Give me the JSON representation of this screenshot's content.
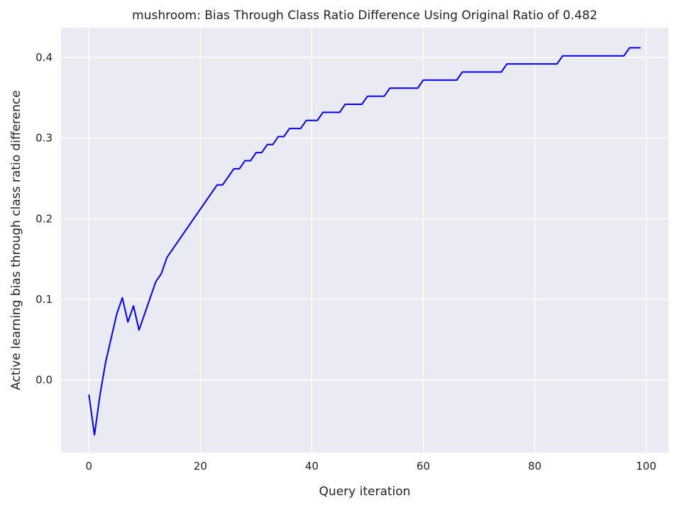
{
  "chart_data": {
    "type": "line",
    "title": "mushroom: Bias Through Class Ratio Difference Using Original Ratio of 0.482",
    "xlabel": "Query iteration",
    "ylabel": "Active learning bias through class ratio difference",
    "xlim": [
      -5,
      104
    ],
    "ylim": [
      -0.09,
      0.437
    ],
    "xticks": [
      0,
      20,
      40,
      60,
      80,
      100
    ],
    "yticks": [
      0.0,
      0.1,
      0.2,
      0.3,
      0.4
    ],
    "xtick_labels": [
      "0",
      "20",
      "40",
      "60",
      "80",
      "100"
    ],
    "ytick_labels": [
      "0.0",
      "0.1",
      "0.2",
      "0.3",
      "0.4"
    ],
    "grid": true,
    "colors": {
      "background": "#eaeaf2",
      "grid": "#ffffff",
      "line": "#0000ff"
    },
    "series": [
      {
        "color": "#0000ff",
        "x": [
          0,
          1,
          2,
          3,
          4,
          5,
          6,
          7,
          8,
          9,
          10,
          11,
          12,
          13,
          14,
          15,
          16,
          17,
          18,
          19,
          20,
          21,
          22,
          23,
          24,
          25,
          26,
          27,
          28,
          29,
          30,
          31,
          32,
          33,
          34,
          35,
          36,
          37,
          38,
          39,
          40,
          41,
          42,
          43,
          44,
          45,
          46,
          47,
          48,
          49,
          50,
          51,
          52,
          53,
          54,
          55,
          56,
          57,
          58,
          59,
          60,
          61,
          62,
          63,
          64,
          65,
          66,
          67,
          68,
          69,
          70,
          71,
          72,
          73,
          74,
          75,
          76,
          77,
          78,
          79,
          80,
          81,
          82,
          83,
          84,
          85,
          86,
          87,
          88,
          89,
          90,
          91,
          92,
          93,
          94,
          95,
          96,
          97,
          98,
          99
        ],
        "values": [
          -0.018,
          -0.068,
          -0.018,
          0.022,
          0.052,
          0.082,
          0.102,
          0.072,
          0.092,
          0.062,
          0.082,
          0.102,
          0.122,
          0.132,
          0.152,
          0.162,
          0.172,
          0.182,
          0.192,
          0.202,
          0.212,
          0.222,
          0.232,
          0.242,
          0.242,
          0.252,
          0.262,
          0.262,
          0.272,
          0.272,
          0.282,
          0.282,
          0.292,
          0.292,
          0.302,
          0.302,
          0.312,
          0.312,
          0.312,
          0.322,
          0.322,
          0.322,
          0.332,
          0.332,
          0.332,
          0.332,
          0.342,
          0.342,
          0.342,
          0.342,
          0.352,
          0.352,
          0.352,
          0.352,
          0.362,
          0.362,
          0.362,
          0.362,
          0.362,
          0.362,
          0.372,
          0.372,
          0.372,
          0.372,
          0.372,
          0.372,
          0.372,
          0.382,
          0.382,
          0.382,
          0.382,
          0.382,
          0.382,
          0.382,
          0.382,
          0.392,
          0.392,
          0.392,
          0.392,
          0.392,
          0.392,
          0.392,
          0.392,
          0.392,
          0.392,
          0.402,
          0.402,
          0.402,
          0.402,
          0.402,
          0.402,
          0.402,
          0.402,
          0.402,
          0.402,
          0.402,
          0.402,
          0.412,
          0.412,
          0.412
        ]
      }
    ]
  }
}
